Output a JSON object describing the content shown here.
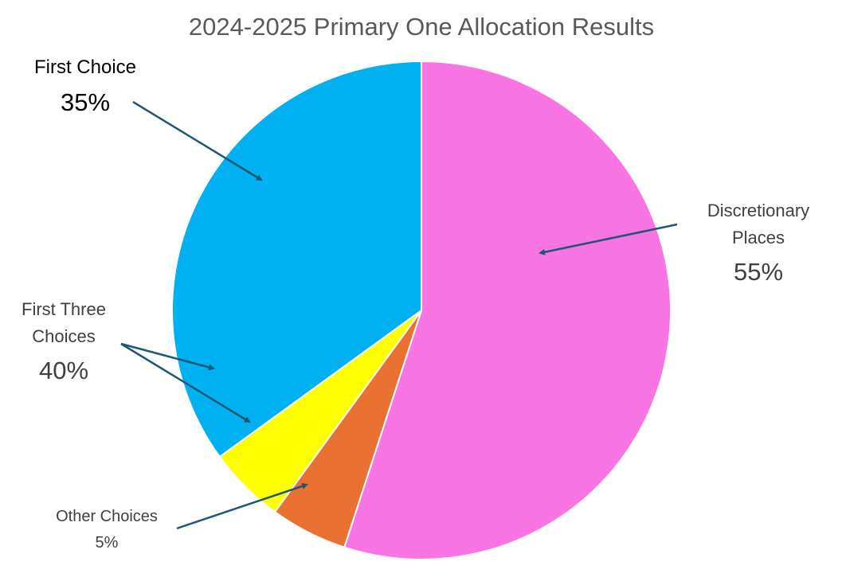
{
  "chart_data": {
    "type": "pie",
    "title": "2024-2025 Primary One Allocation Results",
    "categories": [
      "Discretionary Places",
      "Other Choices",
      null,
      "First Choice"
    ],
    "values": [
      55,
      5,
      5,
      35
    ],
    "value_labels": [
      "55%",
      "5%",
      null,
      "35%"
    ],
    "colors": [
      "#f975e4",
      "#e97132",
      "#ffff00",
      "#00b0f0"
    ],
    "annotations": [
      {
        "text": "First Three Choices",
        "value": 40,
        "label": "40%"
      }
    ]
  }
}
